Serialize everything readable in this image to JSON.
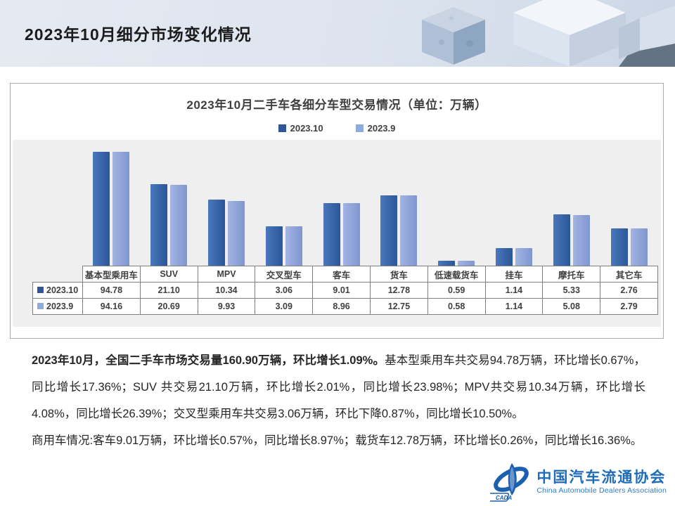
{
  "page": {
    "title": "2023年10月细分市场变化情况"
  },
  "chart_data": {
    "type": "bar",
    "title": "2023年10月二手车各细分车型交易情况（单位：万辆）",
    "categories": [
      "基本型乘用车",
      "SUV",
      "MPV",
      "交叉型车",
      "客车",
      "货车",
      "低速载货车",
      "挂车",
      "摩托车",
      "其它车"
    ],
    "series": [
      {
        "name": "2023.10",
        "color": "#2F5597",
        "fill": [
          "#4A77BD",
          "#2B5697"
        ],
        "values": [
          "94.78",
          "21.10",
          "10.34",
          "3.06",
          "9.01",
          "12.78",
          "0.59",
          "1.14",
          "5.33",
          "2.76"
        ]
      },
      {
        "name": "2023.9",
        "color": "#8FAADC",
        "fill": [
          "#A2B4E2",
          "#8096D0"
        ],
        "values": [
          "94.16",
          "20.69",
          "9.93",
          "3.09",
          "8.96",
          "12.75",
          "0.58",
          "1.14",
          "5.08",
          "2.79"
        ]
      }
    ],
    "scale": "log",
    "y_baseline": 0.5,
    "legend_position": "top",
    "value_axis_hidden": true
  },
  "body": {
    "p1_bold": "2023年10月，全国二手车市场交易量160.90万辆，环比增长1.09%。",
    "p1_rest": "基本型乘用车共交易94.78万辆，环比增长0.67%，同比增长17.36%；SUV 共交易21.10万辆，环比增长2.01%，同比增长23.98%；MPV共交易10.34万辆，环比增长4.08%，同比增长26.39%；交叉型乘用车共交易3.06万辆，环比下降0.87%，同比增长10.50%。",
    "p2": "商用车情况:客车9.01万辆，环比增长0.57%，同比增长8.97%；载货车12.78万辆，环比增长0.26%，同比增长16.36%。"
  },
  "logo": {
    "cn": "中国汽车流通协会",
    "en": "China Automobile Dealers Association",
    "emblem_text": "CADA",
    "color": "#1E6CB8"
  },
  "colors": {
    "header_bg": "#DDE4EE",
    "plot_bg": "#EFEFEF",
    "table_border": "#7F7F7F",
    "text": "#262626"
  }
}
